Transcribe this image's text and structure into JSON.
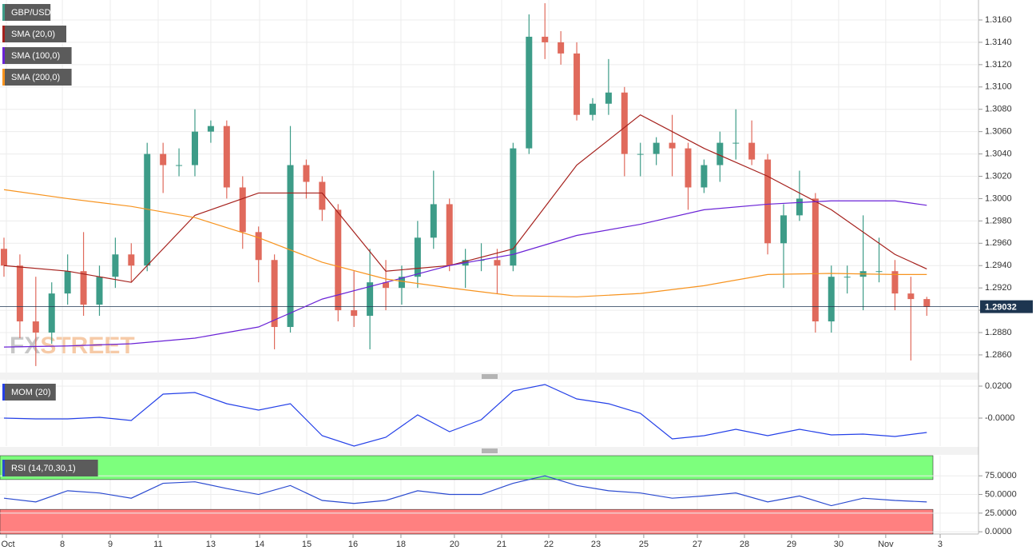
{
  "chart_data": [
    {
      "type": "candlestick",
      "title": "GBP/USD",
      "watermark": "FXSTREET",
      "up_color": "#3d9c88",
      "down_color": "#e06a5c",
      "candles": {
        "open": [
          1.2955,
          1.294,
          1.289,
          1.288,
          1.2915,
          1.2935,
          1.2905,
          1.293,
          1.295,
          1.294,
          1.304,
          1.303,
          1.303,
          1.306,
          1.3065,
          1.301,
          1.297,
          1.2945,
          1.2885,
          1.303,
          1.3015,
          1.299,
          1.29,
          1.2895,
          1.2925,
          1.292,
          1.293,
          1.2965,
          1.2995,
          1.294,
          1.2945,
          1.2945,
          1.294,
          1.3045,
          1.3145,
          1.314,
          1.313,
          1.3075,
          1.3085,
          1.3095,
          1.304,
          1.304,
          1.305,
          1.3045,
          1.301,
          1.303,
          1.305,
          1.305,
          1.3035,
          1.296,
          1.2985,
          1.3,
          1.289,
          1.293,
          1.293,
          1.2935,
          1.2935,
          1.2915,
          1.291
        ],
        "high": [
          1.2965,
          1.295,
          1.293,
          1.2925,
          1.295,
          1.297,
          1.294,
          1.2965,
          1.296,
          1.305,
          1.305,
          1.3045,
          1.308,
          1.307,
          1.307,
          1.302,
          1.2975,
          1.295,
          1.3065,
          1.3035,
          1.302,
          1.2995,
          1.2935,
          1.2955,
          1.2945,
          1.294,
          1.298,
          1.3025,
          1.3,
          1.2955,
          1.296,
          1.2955,
          1.305,
          1.3165,
          1.3175,
          1.315,
          1.314,
          1.309,
          1.3125,
          1.31,
          1.305,
          1.3055,
          1.3075,
          1.305,
          1.3035,
          1.306,
          1.308,
          1.307,
          1.304,
          1.2995,
          1.3025,
          1.3005,
          1.294,
          1.294,
          1.2985,
          1.2965,
          1.2945,
          1.293,
          1.2912
        ],
        "low": [
          1.293,
          1.2875,
          1.285,
          1.287,
          1.2905,
          1.2895,
          1.2895,
          1.292,
          1.2925,
          1.2935,
          1.3005,
          1.302,
          1.302,
          1.305,
          1.3,
          1.2955,
          1.2925,
          1.2865,
          1.288,
          1.3,
          1.298,
          1.289,
          1.2885,
          1.2865,
          1.29,
          1.2905,
          1.292,
          1.2955,
          1.2935,
          1.292,
          1.2935,
          1.2915,
          1.2935,
          1.304,
          1.3125,
          1.312,
          1.307,
          1.307,
          1.3075,
          1.302,
          1.302,
          1.303,
          1.302,
          1.299,
          1.3005,
          1.3015,
          1.3035,
          1.303,
          1.295,
          1.292,
          1.298,
          1.288,
          1.288,
          1.2915,
          1.29,
          1.2925,
          1.29,
          1.2855,
          1.2895
        ],
        "close": [
          1.294,
          1.289,
          1.288,
          1.2915,
          1.2935,
          1.2905,
          1.293,
          1.295,
          1.294,
          1.304,
          1.303,
          1.303,
          1.306,
          1.3065,
          1.301,
          1.297,
          1.2945,
          1.2885,
          1.303,
          1.3015,
          1.299,
          1.29,
          1.2895,
          1.2925,
          1.292,
          1.293,
          1.2965,
          1.2995,
          1.294,
          1.2945,
          1.2945,
          1.294,
          1.3045,
          1.3145,
          1.314,
          1.313,
          1.3075,
          1.3085,
          1.3095,
          1.304,
          1.304,
          1.305,
          1.3045,
          1.301,
          1.303,
          1.305,
          1.305,
          1.3035,
          1.296,
          1.2985,
          1.3,
          1.289,
          1.293,
          1.293,
          1.2935,
          1.2935,
          1.2915,
          1.291,
          1.2903
        ]
      },
      "last_price": 1.29032,
      "last_price_color": "#1d3550",
      "series": [
        {
          "name": "SMA (20,0)",
          "color": "#a5201c",
          "x": [
            0,
            4,
            8,
            12,
            16,
            20,
            24,
            28,
            32,
            36,
            40,
            44,
            48,
            52,
            56,
            58
          ],
          "values": [
            1.294,
            1.2935,
            1.2925,
            1.2985,
            1.3005,
            1.3005,
            1.2935,
            1.294,
            1.2955,
            1.303,
            1.3075,
            1.3045,
            1.302,
            1.299,
            1.295,
            1.2937
          ]
        },
        {
          "name": "SMA (100,0)",
          "color": "#6a22d6",
          "x": [
            0,
            4,
            8,
            12,
            16,
            20,
            24,
            28,
            32,
            36,
            40,
            44,
            48,
            52,
            56,
            58
          ],
          "values": [
            1.2867,
            1.2868,
            1.287,
            1.2875,
            1.2885,
            1.291,
            1.2925,
            1.294,
            1.295,
            1.2967,
            1.2977,
            1.299,
            1.2995,
            1.2998,
            1.2998,
            1.2994
          ]
        },
        {
          "name": "SMA (200,0)",
          "color": "#f7931e",
          "x": [
            0,
            4,
            8,
            12,
            16,
            20,
            24,
            28,
            32,
            36,
            40,
            44,
            48,
            52,
            56,
            58
          ],
          "values": [
            1.3008,
            1.3,
            1.2993,
            1.2983,
            1.2965,
            1.2943,
            1.2928,
            1.292,
            1.2913,
            1.2912,
            1.2915,
            1.2922,
            1.2932,
            1.2933,
            1.2932,
            1.2932
          ]
        }
      ],
      "ylim": [
        1.28442,
        1.31779
      ],
      "yticks": [
        {
          "value": 1.286,
          "label": "1.2860"
        },
        {
          "value": 1.288,
          "label": "1.2880"
        },
        {
          "value": 1.29,
          "label": "1.2900"
        },
        {
          "value": 1.292,
          "label": "1.2920"
        },
        {
          "value": 1.294,
          "label": "1.2940"
        },
        {
          "value": 1.296,
          "label": "1.2960"
        },
        {
          "value": 1.298,
          "label": "1.2980"
        },
        {
          "value": 1.3,
          "label": "1.3000"
        },
        {
          "value": 1.302,
          "label": "1.3020"
        },
        {
          "value": 1.304,
          "label": "1.3040"
        },
        {
          "value": 1.306,
          "label": "1.3060"
        },
        {
          "value": 1.308,
          "label": "1.3080"
        },
        {
          "value": 1.31,
          "label": "1.3100"
        },
        {
          "value": 1.312,
          "label": "1.3120"
        },
        {
          "value": 1.314,
          "label": "1.3140"
        },
        {
          "value": 1.316,
          "label": "1.3160"
        }
      ],
      "xlim": [
        -0.25,
        61.25
      ],
      "xticks": [
        {
          "value": 0.15,
          "label": "Oct"
        },
        {
          "value": 3.67,
          "label": "8"
        },
        {
          "value": 6.68,
          "label": "9"
        },
        {
          "value": 9.69,
          "label": "11"
        },
        {
          "value": 13.0,
          "label": "13"
        },
        {
          "value": 16.07,
          "label": "14"
        },
        {
          "value": 19.03,
          "label": "15"
        },
        {
          "value": 21.94,
          "label": "16"
        },
        {
          "value": 24.95,
          "label": "18"
        },
        {
          "value": 28.31,
          "label": "20"
        },
        {
          "value": 31.28,
          "label": "21"
        },
        {
          "value": 34.24,
          "label": "22"
        },
        {
          "value": 37.2,
          "label": "23"
        },
        {
          "value": 40.21,
          "label": "25"
        },
        {
          "value": 43.58,
          "label": "27"
        },
        {
          "value": 46.54,
          "label": "28"
        },
        {
          "value": 49.5,
          "label": "29"
        },
        {
          "value": 52.46,
          "label": "30"
        },
        {
          "value": 55.42,
          "label": "Nov"
        },
        {
          "value": 58.84,
          "label": "3"
        }
      ],
      "grid": true
    },
    {
      "type": "line",
      "series": [
        {
          "name": "MOM (20)",
          "color": "#2440e8",
          "x": [
            0,
            2,
            4,
            6,
            8,
            10,
            12,
            14,
            16,
            18,
            20,
            22,
            24,
            26,
            28,
            30,
            32,
            34,
            36,
            38,
            40,
            42,
            44,
            46,
            48,
            50,
            52,
            54,
            56,
            58
          ],
          "values": [
            0.0,
            -0.0005,
            -0.0005,
            0.0005,
            -0.0015,
            0.015,
            0.016,
            0.009,
            0.005,
            0.009,
            -0.011,
            -0.0175,
            -0.012,
            0.002,
            -0.0085,
            -0.001,
            0.017,
            0.021,
            0.012,
            0.009,
            0.003,
            -0.013,
            -0.011,
            -0.007,
            -0.011,
            -0.007,
            -0.0105,
            -0.01,
            -0.0115,
            -0.009
          ]
        }
      ],
      "ylim": [
        -0.0175,
        0.024
      ],
      "yticks": [
        {
          "value": 0.02,
          "label": "0.0200"
        },
        {
          "value": 0,
          "label": "-0.0000"
        }
      ]
    },
    {
      "type": "line",
      "series": [
        {
          "name": "RSI (14,70,30,1)",
          "color": "#2a4ad0",
          "x": [
            0,
            2,
            4,
            6,
            8,
            10,
            12,
            14,
            16,
            18,
            20,
            22,
            24,
            26,
            28,
            30,
            32,
            34,
            36,
            38,
            40,
            42,
            44,
            46,
            48,
            50,
            52,
            54,
            56,
            58
          ],
          "values": [
            45,
            40,
            55,
            52,
            45,
            65,
            67,
            58,
            50,
            62,
            42,
            38,
            42,
            55,
            50,
            50,
            65,
            75,
            62,
            55,
            52,
            45,
            48,
            52,
            40,
            48,
            35,
            45,
            42,
            40
          ]
        }
      ],
      "levels": [
        30,
        70
      ],
      "level_colors": [
        "#ff8080",
        "#7dff7d"
      ],
      "ylim": [
        -3,
        102
      ],
      "yticks": [
        {
          "value": 0,
          "label": "0.0000"
        },
        {
          "value": 25,
          "label": "25.0000"
        },
        {
          "value": 50,
          "label": "50.0000"
        },
        {
          "value": 75,
          "label": "75.0000"
        }
      ]
    }
  ]
}
